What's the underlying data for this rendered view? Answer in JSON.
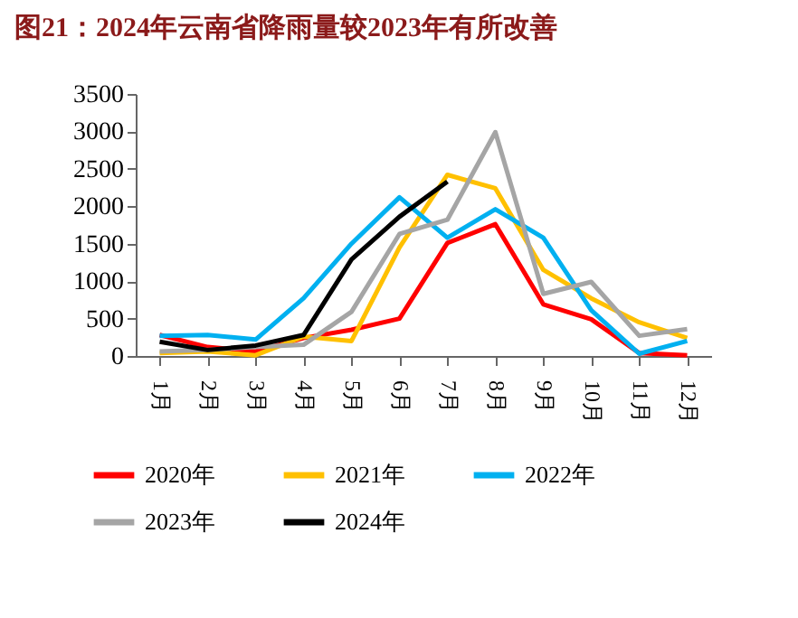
{
  "chart_data": {
    "type": "line",
    "title": "图21：2024年云南省降雨量较2023年有所改善",
    "categories": [
      "1月",
      "2月",
      "3月",
      "4月",
      "5月",
      "6月",
      "7月",
      "8月",
      "9月",
      "10月",
      "11月",
      "12月"
    ],
    "ylim": [
      0,
      3500
    ],
    "yticks": [
      0,
      500,
      1000,
      1500,
      2000,
      2500,
      3000,
      3500
    ],
    "grid": false,
    "legend": "bottom",
    "marker": "none",
    "line_style": "solid",
    "series": [
      {
        "name": "2020年",
        "color": "#ff0000",
        "values": [
          280,
          120,
          60,
          240,
          350,
          500,
          1510,
          1760,
          690,
          490,
          40,
          10
        ]
      },
      {
        "name": "2021年",
        "color": "#ffc000",
        "values": [
          40,
          60,
          10,
          260,
          200,
          1450,
          2420,
          2240,
          1150,
          770,
          450,
          240
        ]
      },
      {
        "name": "2022年",
        "color": "#00b0f0",
        "values": [
          270,
          280,
          220,
          770,
          1500,
          2120,
          1580,
          1960,
          1580,
          610,
          30,
          200
        ]
      },
      {
        "name": "2023年",
        "color": "#a5a5a5",
        "values": [
          60,
          80,
          120,
          150,
          590,
          1630,
          1820,
          2990,
          830,
          990,
          270,
          360
        ]
      },
      {
        "name": "2024年",
        "color": "#000000",
        "values": [
          190,
          80,
          140,
          280,
          1290,
          1860,
          2330,
          null,
          null,
          null,
          null,
          null
        ]
      }
    ]
  }
}
